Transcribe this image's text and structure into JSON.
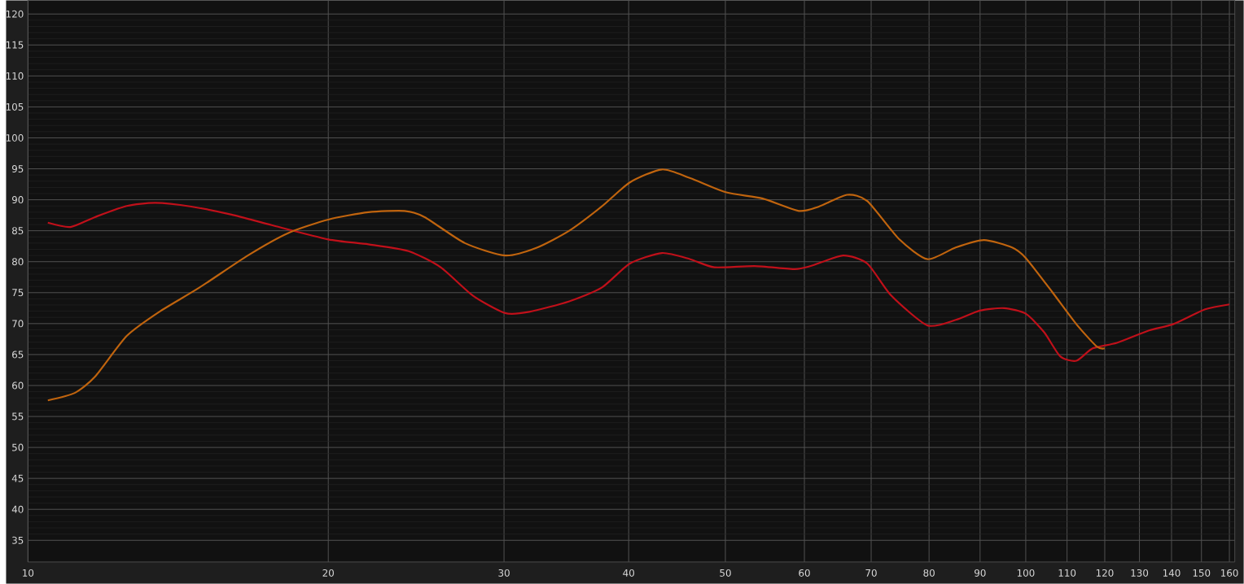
{
  "chart_data": {
    "type": "line",
    "log": "x",
    "grid": true,
    "marker": "none",
    "line_style": "solid",
    "xlim": [
      10,
      162
    ],
    "ylim": [
      31.5,
      122.2
    ],
    "xticks": [
      10,
      20,
      30,
      40,
      50,
      60,
      70,
      80,
      90,
      100,
      110,
      120,
      130,
      140,
      150,
      160
    ],
    "yticks": [
      35,
      40,
      45,
      50,
      55,
      60,
      65,
      70,
      75,
      80,
      85,
      90,
      95,
      100,
      105,
      110,
      115,
      120
    ],
    "series": [
      {
        "color": "#c0101a",
        "x": [
          10.47,
          11.03,
          11.67,
          12.56,
          13.41,
          14.58,
          16.0,
          17.55,
          20.0,
          21.94,
          24.07,
          25.92,
          27.93,
          30.08,
          31.8,
          34.88,
          37.58,
          40.11,
          43.2,
          46.1,
          48.74,
          53.49,
          58.68,
          60.9,
          65.6,
          69.37,
          73.34,
          79.72,
          85.08,
          89.95,
          95.11,
          100,
          104.35,
          108.3,
          112.4,
          116.7,
          123.4,
          132.9,
          140.5,
          151.3,
          160.0
        ],
        "values": [
          86.3,
          85.6,
          87.2,
          89.0,
          89.5,
          88.9,
          87.6,
          85.9,
          83.6,
          82.8,
          81.7,
          79.1,
          74.5,
          71.7,
          71.9,
          73.6,
          75.8,
          79.7,
          81.4,
          80.4,
          79.1,
          79.3,
          78.8,
          79.3,
          81.0,
          79.7,
          74.5,
          69.7,
          70.6,
          72.1,
          72.5,
          71.6,
          68.6,
          64.7,
          64.0,
          66.0,
          66.9,
          68.9,
          69.9,
          72.3,
          73.1
        ]
      },
      {
        "color": "#c0640e",
        "x": [
          10.47,
          11.14,
          11.67,
          12.56,
          13.54,
          14.85,
          16.61,
          18.22,
          20.0,
          21.94,
          23.85,
          24.98,
          27.41,
          30.08,
          32.4,
          34.88,
          37.58,
          40.11,
          43.2,
          46.1,
          50.12,
          54.5,
          59.23,
          62.04,
          66.22,
          69.37,
          74.71,
          79.72,
          85.08,
          90.8,
          96.9,
          100,
          106.3,
          112.4,
          117.8,
          120.0
        ],
        "values": [
          57.6,
          58.8,
          61.4,
          68.0,
          71.9,
          75.8,
          81.0,
          84.6,
          86.8,
          88.0,
          88.2,
          87.2,
          83.0,
          81.0,
          82.3,
          85.0,
          88.9,
          92.8,
          94.9,
          93.5,
          91.2,
          90.2,
          88.2,
          88.9,
          90.8,
          89.8,
          83.6,
          80.4,
          82.3,
          83.5,
          82.3,
          80.6,
          75.1,
          69.9,
          66.3,
          66.0
        ]
      }
    ]
  }
}
